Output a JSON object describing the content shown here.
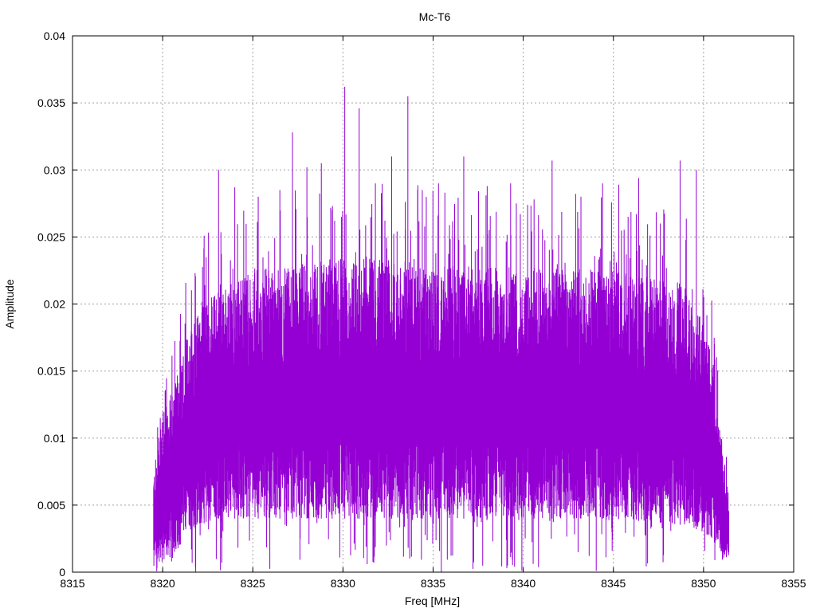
{
  "chart_data": {
    "type": "line",
    "title": "Mc-T6",
    "xlabel": "Freq [MHz]",
    "ylabel": "Amplitude",
    "xlim": [
      8315,
      8355
    ],
    "ylim": [
      0,
      0.04
    ],
    "x_ticks": [
      "8315",
      "8320",
      "8325",
      "8330",
      "8335",
      "8340",
      "8345",
      "8350",
      "8355"
    ],
    "y_ticks": [
      "0",
      "0.005",
      "0.01",
      "0.015",
      "0.02",
      "0.025",
      "0.03",
      "0.035",
      "0.04"
    ],
    "grid": true,
    "series_color": "#9400d3",
    "series": [
      {
        "x_range": [
          8319.5,
          8351.4
        ],
        "envelope": {
          "x": [
            8319.5,
            8320.0,
            8320.5,
            8321.0,
            8321.5,
            8322.0,
            8323.0,
            8325.0,
            8330.0,
            8335.0,
            8340.0,
            8345.0,
            8349.0,
            8350.0,
            8350.5,
            8351.0,
            8351.4
          ],
          "upper": [
            0.0075,
            0.012,
            0.013,
            0.016,
            0.0185,
            0.02,
            0.021,
            0.0225,
            0.0235,
            0.023,
            0.0228,
            0.0225,
            0.0215,
            0.0185,
            0.016,
            0.01,
            0.006
          ],
          "lower": [
            0.0,
            0.0008,
            0.0012,
            0.002,
            0.003,
            0.0035,
            0.004,
            0.004,
            0.004,
            0.004,
            0.004,
            0.004,
            0.0035,
            0.003,
            0.0025,
            0.001,
            0.001
          ]
        },
        "peaks": [
          {
            "x": 8320.4,
            "y": 0.0128
          },
          {
            "x": 8321.8,
            "y": 0.0223
          },
          {
            "x": 8322.3,
            "y": 0.0251
          },
          {
            "x": 8323.1,
            "y": 0.03
          },
          {
            "x": 8324.0,
            "y": 0.0287
          },
          {
            "x": 8325.3,
            "y": 0.028
          },
          {
            "x": 8326.5,
            "y": 0.0285
          },
          {
            "x": 8327.2,
            "y": 0.0328
          },
          {
            "x": 8328.0,
            "y": 0.0302
          },
          {
            "x": 8328.8,
            "y": 0.0305
          },
          {
            "x": 8329.4,
            "y": 0.027
          },
          {
            "x": 8330.1,
            "y": 0.0362
          },
          {
            "x": 8330.9,
            "y": 0.0346
          },
          {
            "x": 8331.8,
            "y": 0.029
          },
          {
            "x": 8332.7,
            "y": 0.031
          },
          {
            "x": 8333.6,
            "y": 0.0355
          },
          {
            "x": 8334.4,
            "y": 0.0285
          },
          {
            "x": 8335.3,
            "y": 0.029
          },
          {
            "x": 8336.7,
            "y": 0.031
          },
          {
            "x": 8338.0,
            "y": 0.0288
          },
          {
            "x": 8339.3,
            "y": 0.029
          },
          {
            "x": 8340.6,
            "y": 0.0278
          },
          {
            "x": 8341.6,
            "y": 0.0307
          },
          {
            "x": 8343.2,
            "y": 0.028
          },
          {
            "x": 8344.4,
            "y": 0.029
          },
          {
            "x": 8345.3,
            "y": 0.0289
          },
          {
            "x": 8346.4,
            "y": 0.0294
          },
          {
            "x": 8347.6,
            "y": 0.026
          },
          {
            "x": 8348.7,
            "y": 0.0307
          },
          {
            "x": 8349.6,
            "y": 0.03
          }
        ]
      }
    ]
  }
}
